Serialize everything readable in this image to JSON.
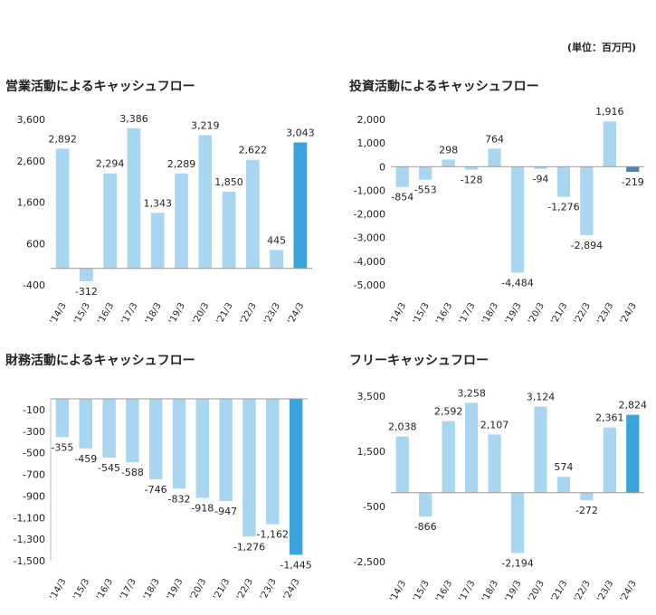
{
  "unit_label": "(単位：百万円)",
  "chart_data": [
    {
      "type": "bar",
      "title": "営業活動によるキャッシュフロー",
      "categories": [
        "'14/3",
        "'15/3",
        "'16/3",
        "'17/3",
        "'18/3",
        "'19/3",
        "'20/3",
        "'21/3",
        "'22/3",
        "'23/3",
        "'24/3"
      ],
      "values": [
        2892,
        -312,
        2294,
        3386,
        1343,
        2289,
        3219,
        1850,
        2622,
        445,
        3043
      ],
      "value_labels": [
        "2,892",
        "-312",
        "2,294",
        "3,386",
        "1,343",
        "2,289",
        "3,219",
        "1,850",
        "2,622",
        "445",
        "3,043"
      ],
      "yticks": [
        "3,600",
        "2,600",
        "1,600",
        "600",
        "-400"
      ],
      "ytick_values": [
        3600,
        2600,
        1600,
        600,
        -400
      ],
      "ylim": [
        -400,
        3600
      ],
      "highlight_index": 10,
      "colors": {
        "bar": "#a8d5ef",
        "highlight": "#3aa3dc"
      }
    },
    {
      "type": "bar",
      "title": "投資活動によるキャッシュフロー",
      "categories": [
        "'14/3",
        "'15/3",
        "'16/3",
        "'17/3",
        "'18/3",
        "'19/3",
        "'20/3",
        "'21/3",
        "'22/3",
        "'23/3",
        "'24/3"
      ],
      "values": [
        -854,
        -553,
        298,
        -128,
        764,
        -4484,
        -94,
        -1276,
        -2894,
        1916,
        -219
      ],
      "value_labels": [
        "-854",
        "-553",
        "298",
        "-128",
        "764",
        "-4,484",
        "-94",
        "-1,276",
        "-2,894",
        "1,916",
        "-219"
      ],
      "yticks": [
        "2,000",
        "1,000",
        "0",
        "-1,000",
        "-2,000",
        "-3,000",
        "-4,000",
        "-5,000"
      ],
      "ytick_values": [
        2000,
        1000,
        0,
        -1000,
        -2000,
        -3000,
        -4000,
        -5000
      ],
      "ylim": [
        -5000,
        2000
      ],
      "highlight_index": 10,
      "colors": {
        "bar": "#a8d5ef",
        "highlight": "#4e81bd"
      }
    },
    {
      "type": "bar",
      "title": "財務活動によるキャッシュフロー",
      "categories": [
        "'14/3",
        "'15/3",
        "'16/3",
        "'17/3",
        "'18/3",
        "'19/3",
        "'20/3",
        "'21/3",
        "'22/3",
        "'23/3",
        "'24/3"
      ],
      "values": [
        -355,
        -459,
        -545,
        -588,
        -746,
        -832,
        -918,
        -947,
        -1276,
        -1162,
        -1445
      ],
      "value_labels": [
        "-355",
        "-459",
        "-545",
        "-588",
        "-746",
        "-832",
        "-918",
        "-947",
        "-1,276",
        "-1,162",
        "-1,445"
      ],
      "yticks": [
        "-100",
        "-300",
        "-500",
        "-700",
        "-900",
        "-1,100",
        "-1,300",
        "-1,500"
      ],
      "ytick_values": [
        -100,
        -300,
        -500,
        -700,
        -900,
        -1100,
        -1300,
        -1500
      ],
      "ylim": [
        -1500,
        0
      ],
      "highlight_index": 10,
      "colors": {
        "bar": "#a8d5ef",
        "highlight": "#3aa3dc"
      }
    },
    {
      "type": "bar",
      "title": "フリーキャッシュフロー",
      "categories": [
        "'14/3",
        "'15/3",
        "'16/3",
        "'17/3",
        "'18/3",
        "'19/3",
        "'20/3",
        "'21/3",
        "'22/3",
        "'23/3",
        "'24/3"
      ],
      "values": [
        2038,
        -866,
        2592,
        3258,
        2107,
        -2194,
        3124,
        574,
        -272,
        2361,
        2824
      ],
      "value_labels": [
        "2,038",
        "-866",
        "2,592",
        "3,258",
        "2,107",
        "-2,194",
        "3,124",
        "574",
        "-272",
        "2,361",
        "2,824"
      ],
      "yticks": [
        "3,500",
        "1,500",
        "-500",
        "-2,500"
      ],
      "ytick_values": [
        3500,
        1500,
        -500,
        -2500
      ],
      "ylim": [
        -2500,
        3500
      ],
      "highlight_index": 10,
      "colors": {
        "bar": "#a8d5ef",
        "highlight": "#3aa3dc"
      }
    }
  ]
}
